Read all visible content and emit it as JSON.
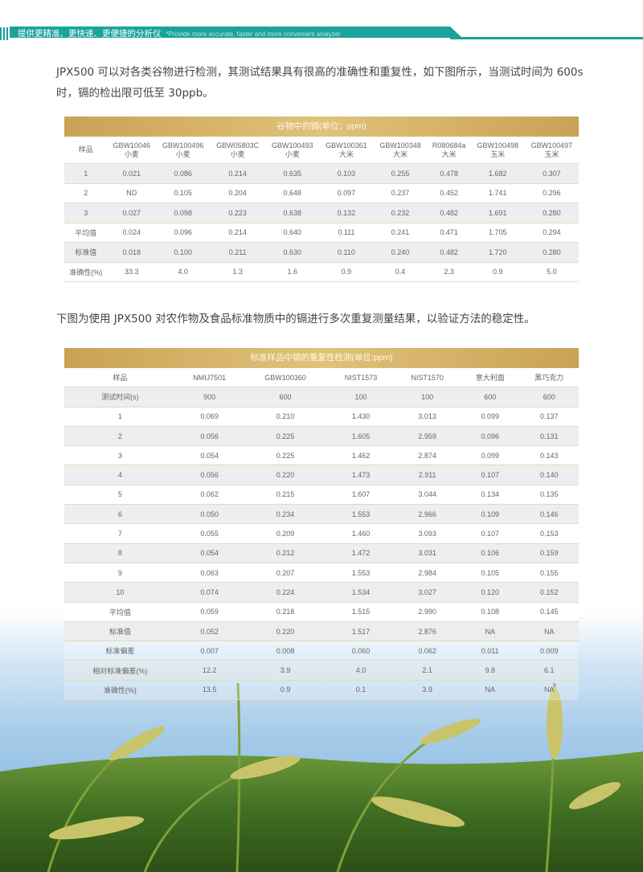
{
  "header": {
    "title_cn": "提供更精准、更快速、更便捷的分析仪",
    "title_en": "*Provide more accurate, faster and more convenient analyzer",
    "accent_color": "#1aa39a"
  },
  "intro": "JPX500 可以对各类谷物进行检测，其测试结果具有很高的准确性和重复性，如下图所示，当测试时间为 600s 时，镉的检出限可低至 30ppb。",
  "table1": {
    "title": "谷物中的镉(单位：ppm)",
    "header": [
      "样品",
      "GBW10046\n小麦",
      "GBW100496\n小麦",
      "GBW05803C\n小麦",
      "GBW100493\n小麦",
      "GBW100361\n大米",
      "GBW100348\n大米",
      "R080684a\n大米",
      "GBW100498\n玉米",
      "GBW100497\n玉米"
    ],
    "rows": [
      [
        "1",
        "0.021",
        "0.086",
        "0.214",
        "0.635",
        "0.103",
        "0.255",
        "0.478",
        "1.682",
        "0.307"
      ],
      [
        "2",
        "ND",
        "0.105",
        "0.204",
        "0.648",
        "0.097",
        "0.237",
        "0.452",
        "1.741",
        "0.296"
      ],
      [
        "3",
        "0.027",
        "0.098",
        "0.223",
        "0.638",
        "0.132",
        "0.232",
        "0.482",
        "1.691",
        "0.280"
      ],
      [
        "平均值",
        "0.024",
        "0.096",
        "0.214",
        "0.640",
        "0.111",
        "0.241",
        "0.471",
        "1.705",
        "0.294"
      ],
      [
        "标准值",
        "0.018",
        "0.100",
        "0.211",
        "0.630",
        "0.110",
        "0.240",
        "0.482",
        "1.720",
        "0.280"
      ],
      [
        "准确性(%)",
        "33.3",
        "4.0",
        "1.3",
        "1.6",
        "0.9",
        "0.4",
        "2.3",
        "0.9",
        "5.0"
      ]
    ]
  },
  "intro2": "下图为使用 JPX500 对农作物及食品标准物质中的镉进行多次重复测量结果，以验证方法的稳定性。",
  "table2": {
    "title": "标准样品中镉的重复性检测(单位:ppm)",
    "rows": [
      [
        "样品",
        "NMIJ7501",
        "GBW100360",
        "NIST1573",
        "NIST1570",
        "意大利面",
        "黑巧克力"
      ],
      [
        "测试时间(s)",
        "900",
        "600",
        "100",
        "100",
        "600",
        "600"
      ],
      [
        "1",
        "0.069",
        "0.210",
        "1.430",
        "3.013",
        "0.099",
        "0.137"
      ],
      [
        "2",
        "0.056",
        "0.225",
        "1.605",
        "2.959",
        "0.096",
        "0.131"
      ],
      [
        "3",
        "0.054",
        "0.225",
        "1.462",
        "2.874",
        "0.099",
        "0.143"
      ],
      [
        "4",
        "0.056",
        "0.220",
        "1.473",
        "2.911",
        "0.107",
        "0.140"
      ],
      [
        "5",
        "0.062",
        "0.215",
        "1.607",
        "3.044",
        "0.134",
        "0.135"
      ],
      [
        "6",
        "0.050",
        "0.234",
        "1.553",
        "2.966",
        "0.109",
        "0.146"
      ],
      [
        "7",
        "0.055",
        "0.209",
        "1.460",
        "3.093",
        "0.107",
        "0.153"
      ],
      [
        "8",
        "0.054",
        "0.212",
        "1.472",
        "3.031",
        "0.106",
        "0.159"
      ],
      [
        "9",
        "0.063",
        "0.207",
        "1.553",
        "2.984",
        "0.105",
        "0.155"
      ],
      [
        "10",
        "0.074",
        "0.224",
        "1.534",
        "3.027",
        "0.120",
        "0.152"
      ],
      [
        "平均值",
        "0.059",
        "0.218",
        "1.515",
        "2.990",
        "0.108",
        "0.145"
      ],
      [
        "标准值",
        "0.052",
        "0.220",
        "1.517",
        "2.876",
        "NA",
        "NA"
      ],
      [
        "标准偏差",
        "0.007",
        "0.008",
        "0.060",
        "0.062",
        "0.011",
        "0.009"
      ],
      [
        "相对标准偏差(%)",
        "12.2",
        "3.9",
        "4.0",
        "2.1",
        "9.8",
        "6.1"
      ],
      [
        "准确性(%)",
        "13.5",
        "0.9",
        "0.1",
        "3.9",
        "NA",
        "NA"
      ]
    ]
  },
  "background": {
    "image": "rice-field-sky",
    "gold_color": "#d4b066"
  }
}
